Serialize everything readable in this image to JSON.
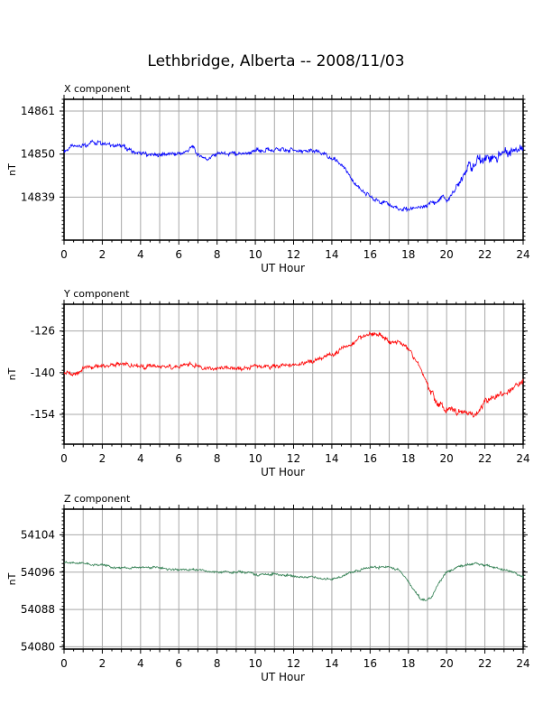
{
  "title": "Lethbridge, Alberta -- 2008/11/03",
  "chart_data": [
    {
      "type": "line",
      "component_label": "X component",
      "xlabel": "UT Hour",
      "ylabel": "nT",
      "xlim": [
        0,
        24
      ],
      "x_ticks": [
        "0",
        "2",
        "4",
        "6",
        "8",
        "10",
        "12",
        "14",
        "16",
        "18",
        "20",
        "22",
        "24"
      ],
      "ylim": [
        14828,
        14864
      ],
      "y_ticks": [
        14861,
        14850,
        14839
      ],
      "y_tick_labels": [
        "14861",
        "14850",
        "14839"
      ],
      "color": "#0000ff",
      "series": [
        {
          "x": [
            0,
            0.5,
            1,
            1.5,
            2,
            2.5,
            3,
            3.5,
            4,
            4.5,
            5,
            5.5,
            6,
            6.5,
            6.7,
            7,
            7.5,
            8,
            8.5,
            9,
            9.5,
            10,
            10.5,
            11,
            11.5,
            12,
            12.5,
            13,
            13.5,
            14,
            14.5,
            15,
            15.5,
            16,
            16.5,
            17,
            17.5,
            18,
            18.5,
            19,
            19.5,
            19.8,
            20,
            20.5,
            21,
            21.5,
            22,
            22.5,
            23,
            23.5,
            24
          ],
          "y": [
            14851,
            14852,
            14852,
            14853,
            14853,
            14852,
            14852,
            14851,
            14850,
            14850,
            14850,
            14850,
            14850,
            14851,
            14852,
            14850,
            14849,
            14850,
            14850,
            14850,
            14850,
            14851,
            14851,
            14851,
            14851,
            14851,
            14851,
            14851,
            14850,
            14849,
            14847,
            14844,
            14841,
            14839,
            14838,
            14837,
            14836,
            14836,
            14836,
            14837,
            14838,
            14839,
            14838,
            14841,
            14846,
            14848,
            14849,
            14849,
            14850,
            14851,
            14852
          ]
        }
      ]
    },
    {
      "type": "line",
      "component_label": "Y component",
      "xlabel": "UT Hour",
      "ylabel": "nT",
      "xlim": [
        0,
        24
      ],
      "x_ticks": [
        "0",
        "2",
        "4",
        "6",
        "8",
        "10",
        "12",
        "14",
        "16",
        "18",
        "20",
        "22",
        "24"
      ],
      "ylim": [
        -164,
        -117
      ],
      "y_ticks": [
        -126,
        -140,
        -154
      ],
      "y_tick_labels": [
        "-126",
        "-140",
        "-154"
      ],
      "color": "#ff0000",
      "series": [
        {
          "x": [
            0,
            0.5,
            1,
            1.5,
            2,
            2.5,
            3,
            3.5,
            4,
            4.5,
            5,
            5.5,
            6,
            6.5,
            7,
            7.5,
            8,
            8.5,
            9,
            9.5,
            10,
            10.5,
            11,
            11.5,
            12,
            12.5,
            13,
            13.5,
            14,
            14.5,
            15,
            15.5,
            16,
            16.5,
            17,
            17.5,
            18,
            18.5,
            19,
            19.5,
            20,
            20.5,
            21,
            21.5,
            22,
            22.5,
            23,
            23.5,
            24
          ],
          "y": [
            -140,
            -140.5,
            -138.5,
            -138,
            -137.5,
            -137.5,
            -137.5,
            -137.5,
            -138,
            -138,
            -138,
            -138,
            -138,
            -137,
            -138,
            -138.5,
            -139,
            -138.5,
            -138.5,
            -138.5,
            -138,
            -138,
            -138,
            -137.5,
            -137,
            -136.5,
            -136,
            -135,
            -134,
            -132,
            -131,
            -128,
            -127,
            -127,
            -129.5,
            -130,
            -132,
            -137,
            -144,
            -150,
            -152.5,
            -153,
            -153.5,
            -154,
            -150,
            -148,
            -147,
            -145,
            -143
          ]
        }
      ]
    },
    {
      "type": "line",
      "component_label": "Z component",
      "xlabel": "UT Hour",
      "ylabel": "nT",
      "xlim": [
        0,
        24
      ],
      "x_ticks": [
        "0",
        "2",
        "4",
        "6",
        "8",
        "10",
        "12",
        "14",
        "16",
        "18",
        "20",
        "22",
        "24"
      ],
      "ylim": [
        54079.5,
        54109.5
      ],
      "y_ticks": [
        54104,
        54096,
        54088,
        54080
      ],
      "y_tick_labels": [
        "54104",
        "54096",
        "54088",
        "54080"
      ],
      "color": "#2e7d4f",
      "series": [
        {
          "x": [
            0,
            0.5,
            1,
            1.5,
            2,
            2.5,
            3,
            3.5,
            4,
            4.5,
            5,
            5.5,
            6,
            6.5,
            7,
            7.5,
            8,
            8.5,
            9,
            9.5,
            10,
            10.5,
            11,
            11.5,
            12,
            12.5,
            13,
            13.5,
            14,
            14.5,
            15,
            15.5,
            16,
            16.5,
            17,
            17.5,
            18,
            18.3,
            18.6,
            18.9,
            19.2,
            19.5,
            20,
            20.5,
            21,
            21.5,
            22,
            22.5,
            23,
            23.5,
            24
          ],
          "y": [
            54098,
            54098,
            54098,
            54097.5,
            54097.5,
            54097,
            54097,
            54097,
            54097,
            54097,
            54097,
            54096.5,
            54096.5,
            54096.5,
            54096.5,
            54096,
            54096,
            54096,
            54096,
            54096,
            54095.5,
            54095.5,
            54095.5,
            54095.5,
            54095,
            54095,
            54095,
            54094.5,
            54094.5,
            54095,
            54096,
            54096.5,
            54097,
            54097,
            54097,
            54096.5,
            54094,
            54092,
            54090.5,
            54090,
            54090.5,
            54093,
            54096,
            54097,
            54097.5,
            54098,
            54097.5,
            54097,
            54096.5,
            54096,
            54095
          ]
        }
      ]
    }
  ]
}
